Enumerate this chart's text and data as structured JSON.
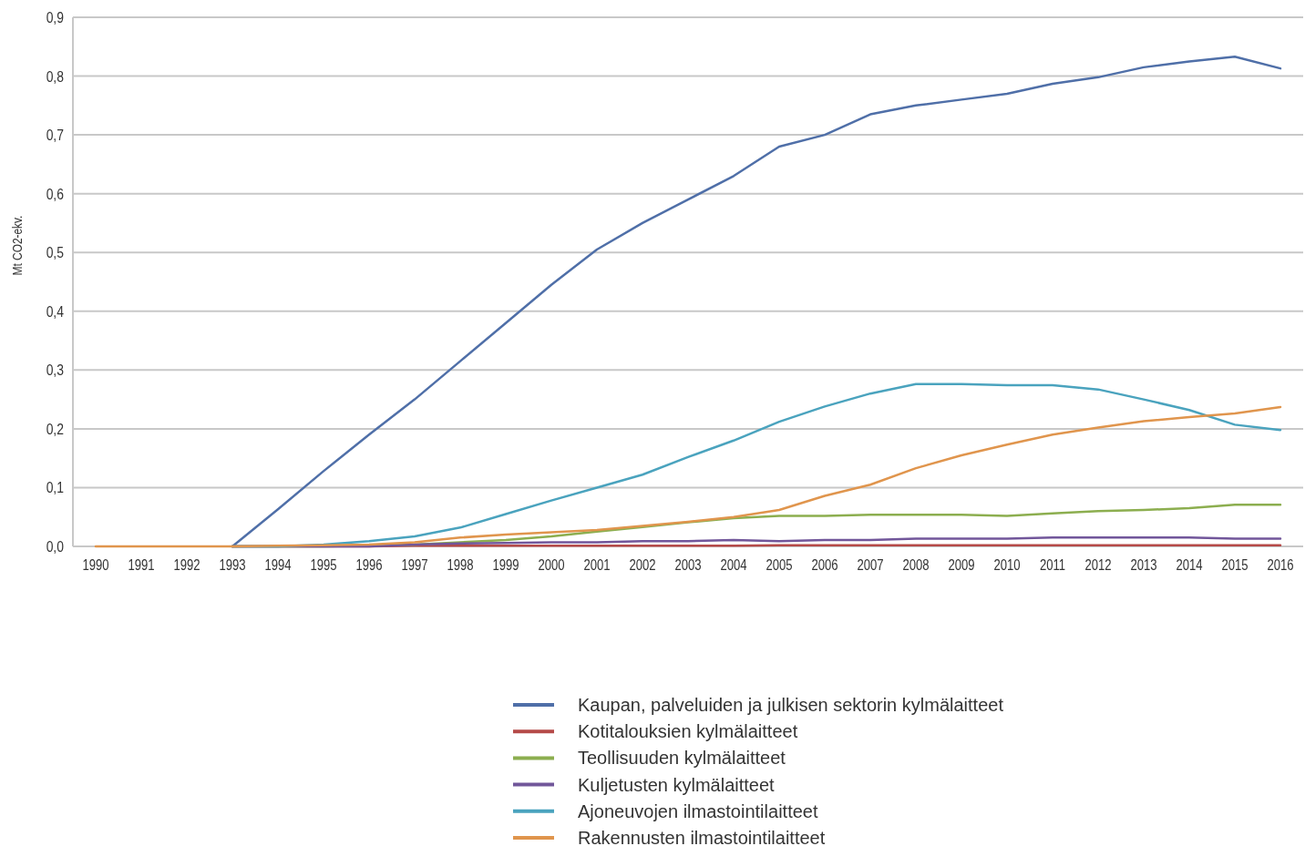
{
  "chart_data": {
    "type": "line",
    "ylabel": "Mt CO2-ekv.",
    "categories": [
      "1990",
      "1991",
      "1992",
      "1993",
      "1994",
      "1995",
      "1996",
      "1997",
      "1998",
      "1999",
      "2000",
      "2001",
      "2002",
      "2003",
      "2004",
      "2005",
      "2006",
      "2007",
      "2008",
      "2009",
      "2010",
      "2011",
      "2012",
      "2013",
      "2014",
      "2015",
      "2016"
    ],
    "ylim": [
      0,
      0.9
    ],
    "yticks": [
      {
        "value": 0,
        "label": "0,0"
      },
      {
        "value": 0.1,
        "label": "0,1"
      },
      {
        "value": 0.2,
        "label": "0,2"
      },
      {
        "value": 0.3,
        "label": "0,3"
      },
      {
        "value": 0.4,
        "label": "0,4"
      },
      {
        "value": 0.5,
        "label": "0,5"
      },
      {
        "value": 0.6,
        "label": "0,6"
      },
      {
        "value": 0.7,
        "label": "0,7"
      },
      {
        "value": 0.8,
        "label": "0,8"
      },
      {
        "value": 0.9,
        "label": "0,9"
      }
    ],
    "grid": "y",
    "legend": "bottom",
    "marker": "none",
    "line_style": "solid",
    "series": [
      {
        "name": "Kaupan, palveluiden ja julkisen sektorin kylmälaitteet",
        "color": "#4f6fa8",
        "values": [
          null,
          null,
          null,
          0,
          0.063,
          0.128,
          0.19,
          0.25,
          0.315,
          0.38,
          0.445,
          0.505,
          0.55,
          0.59,
          0.63,
          0.68,
          0.7,
          0.735,
          0.75,
          0.76,
          0.77,
          0.787,
          0.798,
          0.815,
          0.825,
          0.833,
          0.813
        ]
      },
      {
        "name": "Kotitalouksien kylmälaitteet",
        "color": "#b54a48",
        "values": [
          null,
          null,
          null,
          0,
          0,
          0,
          0,
          0.001,
          0.001,
          0.001,
          0.001,
          0.001,
          0.001,
          0.001,
          0.001,
          0.002,
          0.002,
          0.002,
          0.002,
          0.002,
          0.002,
          0.002,
          0.002,
          0.002,
          0.002,
          0.002,
          0.002
        ]
      },
      {
        "name": "Teollisuuden kylmälaitteet",
        "color": "#8cae4f",
        "values": [
          null,
          null,
          null,
          0,
          0,
          0,
          0.001,
          0.003,
          0.007,
          0.011,
          0.017,
          0.025,
          0.033,
          0.041,
          0.048,
          0.052,
          0.052,
          0.054,
          0.054,
          0.054,
          0.052,
          0.056,
          0.06,
          0.062,
          0.065,
          0.071,
          0.071
        ]
      },
      {
        "name": "Kuljetusten kylmälaitteet",
        "color": "#71569a",
        "values": [
          null,
          null,
          null,
          0,
          0,
          0,
          0,
          0.003,
          0.005,
          0.006,
          0.007,
          0.007,
          0.009,
          0.009,
          0.011,
          0.009,
          0.011,
          0.011,
          0.013,
          0.013,
          0.013,
          0.015,
          0.015,
          0.015,
          0.015,
          0.013,
          0.013
        ]
      },
      {
        "name": "Ajoneuvojen ilmastointilaitteet",
        "color": "#4aa3be",
        "values": [
          null,
          null,
          null,
          0,
          0,
          0.003,
          0.009,
          0.017,
          0.032,
          0.055,
          0.078,
          0.1,
          0.122,
          0.152,
          0.18,
          0.212,
          0.238,
          0.26,
          0.276,
          0.276,
          0.274,
          0.274,
          0.267,
          0.25,
          0.232,
          0.207,
          0.198
        ]
      },
      {
        "name": "Rakennusten ilmastointilaitteet",
        "color": "#e0954d",
        "values": [
          0,
          0,
          0,
          0,
          0.001,
          0.002,
          0.003,
          0.007,
          0.015,
          0.02,
          0.024,
          0.028,
          0.035,
          0.042,
          0.05,
          0.062,
          0.086,
          0.105,
          0.133,
          0.155,
          0.173,
          0.19,
          0.202,
          0.213,
          0.22,
          0.226,
          0.237
        ]
      }
    ]
  }
}
